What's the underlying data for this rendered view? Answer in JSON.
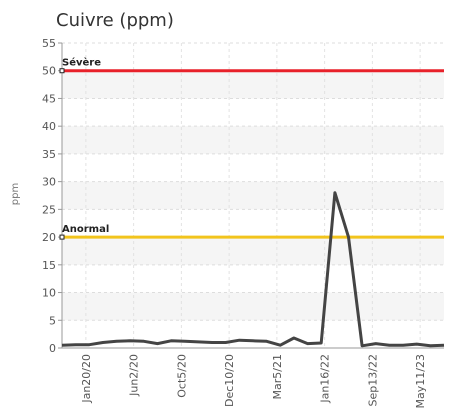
{
  "chart_data": {
    "type": "line",
    "title": "Cuivre (ppm)",
    "ylabel": "ppm",
    "xlabel": "",
    "ylim": [
      0,
      55
    ],
    "yticks": [
      0,
      5,
      10,
      15,
      20,
      25,
      30,
      35,
      40,
      45,
      50,
      55
    ],
    "grid": true,
    "x_tick_labels": [
      "Jan20/20",
      "Jun2/20",
      "Oct5/20",
      "Dec10/20",
      "Mar5/21",
      "Jan16/22",
      "Sep13/22",
      "May11/23"
    ],
    "thresholds": [
      {
        "label": "Sévère",
        "value": 50,
        "color": "#e8212a"
      },
      {
        "label": "Anormal",
        "value": 20,
        "color": "#f2c41c"
      }
    ],
    "series": [
      {
        "color": "#444444",
        "values": [
          0.5,
          0.6,
          0.6,
          1.0,
          1.2,
          1.3,
          1.2,
          0.8,
          1.3,
          1.2,
          1.1,
          1.0,
          1.0,
          1.4,
          1.3,
          1.2,
          0.5,
          1.8,
          0.8,
          0.9,
          28.0,
          20.0,
          0.4,
          0.8,
          0.5,
          0.5,
          0.7,
          0.4,
          0.5
        ]
      }
    ]
  }
}
